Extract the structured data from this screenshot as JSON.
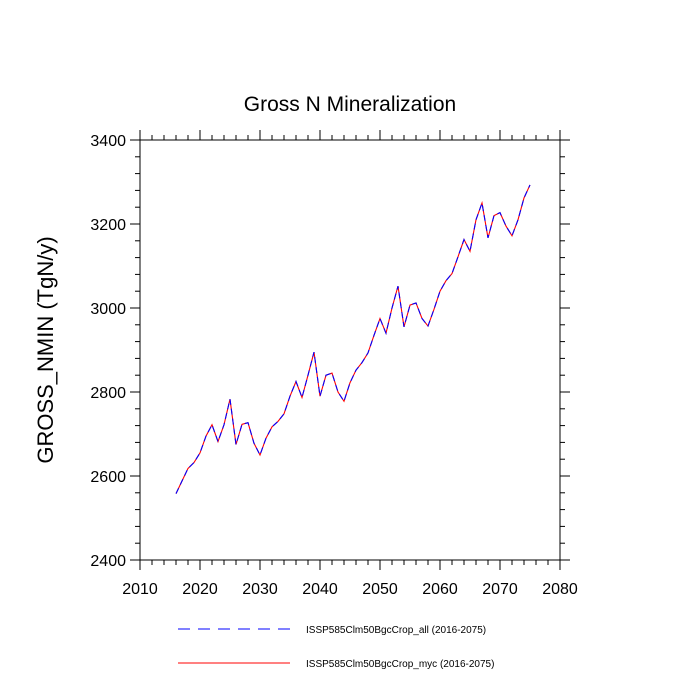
{
  "chart_data": {
    "type": "line",
    "title": "Gross N Mineralization",
    "xlabel": "",
    "ylabel": "GROSS_NMIN  (TgN/y)",
    "xlim": [
      2010,
      2080
    ],
    "ylim": [
      2400,
      3400
    ],
    "xticks": [
      2010,
      2020,
      2030,
      2040,
      2050,
      2060,
      2070,
      2080
    ],
    "yticks": [
      2400,
      2600,
      2800,
      3000,
      3200,
      3400
    ],
    "grid": false,
    "legend_position": "bottom",
    "x": [
      2016,
      2017,
      2018,
      2019,
      2020,
      2021,
      2022,
      2023,
      2024,
      2025,
      2026,
      2027,
      2028,
      2029,
      2030,
      2031,
      2032,
      2033,
      2034,
      2035,
      2036,
      2037,
      2038,
      2039,
      2040,
      2041,
      2042,
      2043,
      2044,
      2045,
      2046,
      2047,
      2048,
      2049,
      2050,
      2051,
      2052,
      2053,
      2054,
      2055,
      2056,
      2057,
      2058,
      2059,
      2060,
      2061,
      2062,
      2063,
      2064,
      2065,
      2066,
      2067,
      2068,
      2069,
      2070,
      2071,
      2072,
      2073,
      2074,
      2075
    ],
    "series": [
      {
        "name": "ISSP585Clm50BgcCrop_all (2016-2075)",
        "color": "#0000ff",
        "line_style": "dashed",
        "values": [
          2558,
          2588,
          2618,
          2632,
          2655,
          2695,
          2722,
          2682,
          2722,
          2783,
          2675,
          2723,
          2727,
          2678,
          2650,
          2690,
          2717,
          2730,
          2748,
          2790,
          2825,
          2787,
          2840,
          2895,
          2790,
          2840,
          2845,
          2800,
          2778,
          2822,
          2852,
          2870,
          2893,
          2935,
          2975,
          2940,
          3000,
          3052,
          2955,
          3007,
          3012,
          2975,
          2957,
          2997,
          3040,
          3065,
          3082,
          3122,
          3163,
          3135,
          3210,
          3250,
          3167,
          3220,
          3227,
          3195,
          3172,
          3210,
          3262,
          3293
        ]
      },
      {
        "name": "ISSP585Clm50BgcCrop_myc (2016-2075)",
        "color": "#ff0000",
        "line_style": "solid",
        "values": [
          2558,
          2588,
          2618,
          2632,
          2655,
          2695,
          2722,
          2682,
          2722,
          2783,
          2675,
          2723,
          2727,
          2678,
          2650,
          2690,
          2717,
          2730,
          2748,
          2790,
          2825,
          2787,
          2840,
          2895,
          2790,
          2840,
          2845,
          2800,
          2778,
          2822,
          2852,
          2870,
          2893,
          2935,
          2975,
          2940,
          3000,
          3052,
          2955,
          3007,
          3012,
          2975,
          2957,
          2997,
          3040,
          3065,
          3082,
          3122,
          3163,
          3135,
          3210,
          3250,
          3167,
          3220,
          3227,
          3195,
          3172,
          3210,
          3262,
          3293
        ]
      }
    ]
  }
}
